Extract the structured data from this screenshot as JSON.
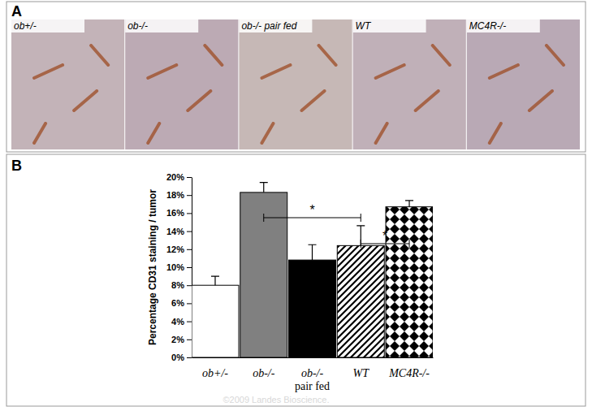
{
  "panel_a": {
    "label": "A",
    "images": [
      "ob+/-",
      "ob-/-",
      "ob-/- pair fed",
      "WT",
      "MC4R-/-"
    ]
  },
  "chart_data": {
    "type": "bar",
    "panel_label": "B",
    "y_label": "Percentage CD31 staining / tumor",
    "categories": [
      "ob+/-",
      "ob-/-",
      "ob-/- pair fed",
      "WT",
      "MC4R-/-"
    ],
    "values": [
      8.0,
      18.3,
      10.8,
      12.4,
      16.7
    ],
    "errors": [
      1.0,
      1.1,
      1.7,
      2.2,
      0.7
    ],
    "colors": [
      "#ffffff",
      "#808080",
      "#000000",
      "#ffffff",
      "#ffffff"
    ],
    "ylim": [
      0,
      20
    ],
    "yticks": [
      {
        "value": 0,
        "label": "0%"
      },
      {
        "value": 2,
        "label": "2%"
      },
      {
        "value": 4,
        "label": "4%"
      },
      {
        "value": 6,
        "label": "6%"
      },
      {
        "value": 8,
        "label": "8%"
      },
      {
        "value": 10,
        "label": "10%"
      },
      {
        "value": 12,
        "label": "12%"
      },
      {
        "value": 14,
        "label": "14%"
      },
      {
        "value": 16,
        "label": "16%"
      },
      {
        "value": 18,
        "label": "18%"
      },
      {
        "value": 20,
        "label": "20%"
      }
    ],
    "grid": false,
    "annotations": [
      {
        "between": [
          "ob-/-",
          "WT"
        ],
        "text": "*"
      },
      {
        "between": [
          "WT",
          "MC4R-/-"
        ],
        "text": "*"
      }
    ],
    "watermark": "©2009 Landes Bioscience."
  }
}
